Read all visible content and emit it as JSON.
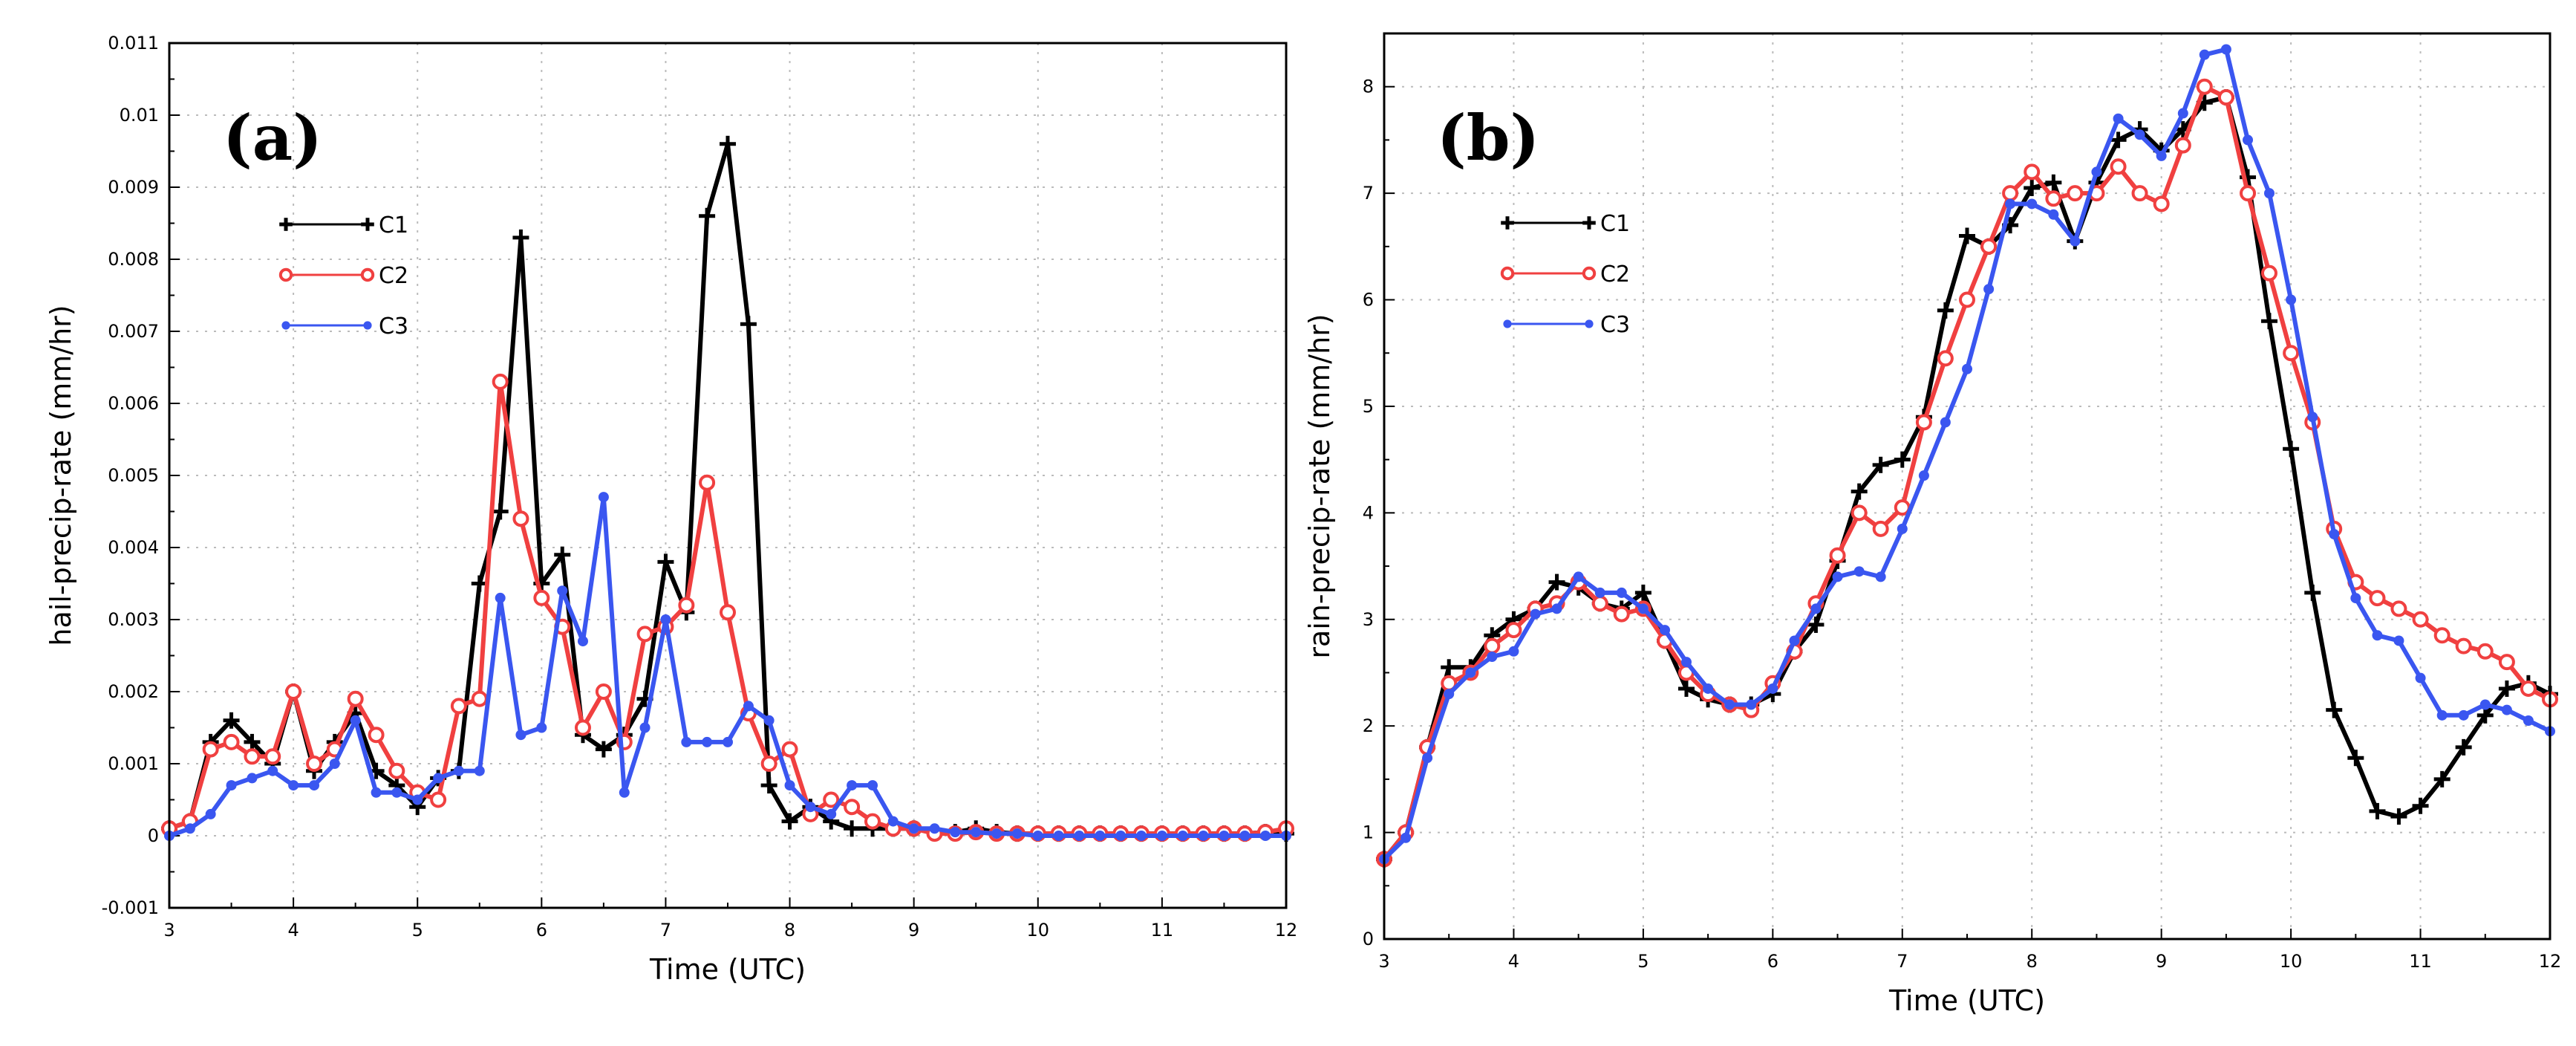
{
  "chart_data": [
    {
      "type": "line",
      "panel_label": "(a)",
      "xlabel": "Time (UTC)",
      "ylabel": "hail-precip-rate (mm/hr)",
      "xlim": [
        3,
        12
      ],
      "ylim": [
        -0.001,
        0.011
      ],
      "xticks": [
        "3",
        "4",
        "5",
        "6",
        "7",
        "8",
        "9",
        "10",
        "11",
        "12"
      ],
      "yticks": [
        "-0.001",
        "0",
        "0.001",
        "0.002",
        "0.003",
        "0.004",
        "0.005",
        "0.006",
        "0.007",
        "0.008",
        "0.009",
        "0.01",
        "0.011"
      ],
      "grid": true,
      "legend_position": "upper-left",
      "series": [
        {
          "name": "C1",
          "marker": "plus",
          "color": "#000000",
          "x": [
            3,
            3.167,
            3.333,
            3.5,
            3.667,
            3.833,
            4,
            4.167,
            4.333,
            4.5,
            4.667,
            4.833,
            5,
            5.167,
            5.333,
            5.5,
            5.667,
            5.833,
            6,
            6.167,
            6.333,
            6.5,
            6.667,
            6.833,
            7,
            7.167,
            7.333,
            7.5,
            7.667,
            7.833,
            8,
            8.167,
            8.333,
            8.5,
            8.667,
            8.833,
            9,
            9.167,
            9.333,
            9.5,
            9.667,
            9.833,
            10,
            10.167,
            10.333,
            10.5,
            10.667,
            10.833,
            11,
            11.167,
            11.333,
            11.5,
            11.667,
            11.833,
            12
          ],
          "y": [
            0.0001,
            0.0002,
            0.0013,
            0.0016,
            0.0013,
            0.001,
            0.002,
            0.0009,
            0.0013,
            0.0017,
            0.0009,
            0.0007,
            0.0004,
            0.0008,
            0.0009,
            0.0035,
            0.0045,
            0.0083,
            0.0035,
            0.0039,
            0.0014,
            0.0012,
            0.0014,
            0.0019,
            0.0038,
            0.0031,
            0.0086,
            0.0096,
            0.0071,
            0.0007,
            0.0002,
            0.0004,
            0.0002,
            0.0001,
            0.0001,
            0.0001,
            0.0001,
            5e-05,
            5e-05,
            0.0001,
            5e-05,
            3e-05,
            3e-05,
            3e-05,
            3e-05,
            3e-05,
            3e-05,
            3e-05,
            3e-05,
            3e-05,
            3e-05,
            3e-05,
            3e-05,
            5e-05,
            3e-05
          ]
        },
        {
          "name": "C2",
          "marker": "open-circle",
          "color": "#f04040",
          "x": [
            3,
            3.167,
            3.333,
            3.5,
            3.667,
            3.833,
            4,
            4.167,
            4.333,
            4.5,
            4.667,
            4.833,
            5,
            5.167,
            5.333,
            5.5,
            5.667,
            5.833,
            6,
            6.167,
            6.333,
            6.5,
            6.667,
            6.833,
            7,
            7.167,
            7.333,
            7.5,
            7.667,
            7.833,
            8,
            8.167,
            8.333,
            8.5,
            8.667,
            8.833,
            9,
            9.167,
            9.333,
            9.5,
            9.667,
            9.833,
            10,
            10.167,
            10.333,
            10.5,
            10.667,
            10.833,
            11,
            11.167,
            11.333,
            11.5,
            11.667,
            11.833,
            12
          ],
          "y": [
            0.0001,
            0.0002,
            0.0012,
            0.0013,
            0.0011,
            0.0011,
            0.002,
            0.001,
            0.0012,
            0.0019,
            0.0014,
            0.0009,
            0.0006,
            0.0005,
            0.0018,
            0.0019,
            0.0063,
            0.0044,
            0.0033,
            0.0029,
            0.0015,
            0.002,
            0.0013,
            0.0028,
            0.0029,
            0.0032,
            0.0049,
            0.0031,
            0.0017,
            0.001,
            0.0012,
            0.0003,
            0.0005,
            0.0004,
            0.0002,
            0.0001,
            0.0001,
            3e-05,
            3e-05,
            5e-05,
            3e-05,
            3e-05,
            3e-05,
            3e-05,
            3e-05,
            3e-05,
            3e-05,
            3e-05,
            3e-05,
            3e-05,
            3e-05,
            3e-05,
            3e-05,
            5e-05,
            0.0001
          ]
        },
        {
          "name": "C3",
          "marker": "filled-circle",
          "color": "#3a56f0",
          "x": [
            3,
            3.167,
            3.333,
            3.5,
            3.667,
            3.833,
            4,
            4.167,
            4.333,
            4.5,
            4.667,
            4.833,
            5,
            5.167,
            5.333,
            5.5,
            5.667,
            5.833,
            6,
            6.167,
            6.333,
            6.5,
            6.667,
            6.833,
            7,
            7.167,
            7.333,
            7.5,
            7.667,
            7.833,
            8,
            8.167,
            8.333,
            8.5,
            8.667,
            8.833,
            9,
            9.167,
            9.333,
            9.5,
            9.667,
            9.833,
            10,
            10.167,
            10.333,
            10.5,
            10.667,
            10.833,
            11,
            11.167,
            11.333,
            11.5,
            11.667,
            11.833,
            12
          ],
          "y": [
            0.0,
            0.0001,
            0.0003,
            0.0007,
            0.0008,
            0.0009,
            0.0007,
            0.0007,
            0.001,
            0.0016,
            0.0006,
            0.0006,
            0.0005,
            0.0008,
            0.0009,
            0.0009,
            0.0033,
            0.0014,
            0.0015,
            0.0034,
            0.0027,
            0.0047,
            0.0006,
            0.0015,
            0.003,
            0.0013,
            0.0013,
            0.0013,
            0.0018,
            0.0016,
            0.0007,
            0.0004,
            0.0003,
            0.0007,
            0.0007,
            0.0002,
            0.0001,
            0.0001,
            5e-05,
            5e-05,
            3e-05,
            3e-05,
            0.0,
            0.0,
            0.0,
            0.0,
            0.0,
            0.0,
            0.0,
            0.0,
            0.0,
            0.0,
            0.0,
            0.0,
            0.0
          ]
        }
      ]
    },
    {
      "type": "line",
      "panel_label": "(b)",
      "xlabel": "Time (UTC)",
      "ylabel": "rain-precip-rate (mm/hr)",
      "xlim": [
        3,
        12
      ],
      "ylim": [
        0,
        8.5
      ],
      "xticks": [
        "3",
        "4",
        "5",
        "6",
        "7",
        "8",
        "9",
        "10",
        "11",
        "12"
      ],
      "yticks": [
        "0",
        "1",
        "2",
        "3",
        "4",
        "5",
        "6",
        "7",
        "8"
      ],
      "grid": true,
      "legend_position": "upper-left",
      "series": [
        {
          "name": "C1",
          "marker": "plus",
          "color": "#000000",
          "x": [
            3,
            3.167,
            3.333,
            3.5,
            3.667,
            3.833,
            4,
            4.167,
            4.333,
            4.5,
            4.667,
            4.833,
            5,
            5.167,
            5.333,
            5.5,
            5.667,
            5.833,
            6,
            6.167,
            6.333,
            6.5,
            6.667,
            6.833,
            7,
            7.167,
            7.333,
            7.5,
            7.667,
            7.833,
            8,
            8.167,
            8.333,
            8.5,
            8.667,
            8.833,
            9,
            9.167,
            9.333,
            9.5,
            9.667,
            9.833,
            10,
            10.167,
            10.333,
            10.5,
            10.667,
            10.833,
            11,
            11.167,
            11.333,
            11.5,
            11.667,
            11.833,
            12
          ],
          "y": [
            0.75,
            1.0,
            1.8,
            2.55,
            2.55,
            2.85,
            3.0,
            3.1,
            3.35,
            3.3,
            3.15,
            3.1,
            3.25,
            2.8,
            2.35,
            2.25,
            2.2,
            2.2,
            2.3,
            2.7,
            2.95,
            3.55,
            4.2,
            4.45,
            4.5,
            4.9,
            5.9,
            6.6,
            6.5,
            6.7,
            7.05,
            7.1,
            6.55,
            7.1,
            7.5,
            7.6,
            7.4,
            7.6,
            7.85,
            7.9,
            7.15,
            5.8,
            4.6,
            3.25,
            2.15,
            1.7,
            1.2,
            1.15,
            1.25,
            1.5,
            1.8,
            2.1,
            2.35,
            2.4,
            2.3
          ]
        },
        {
          "name": "C2",
          "marker": "open-circle",
          "color": "#f04040",
          "x": [
            3,
            3.167,
            3.333,
            3.5,
            3.667,
            3.833,
            4,
            4.167,
            4.333,
            4.5,
            4.667,
            4.833,
            5,
            5.167,
            5.333,
            5.5,
            5.667,
            5.833,
            6,
            6.167,
            6.333,
            6.5,
            6.667,
            6.833,
            7,
            7.167,
            7.333,
            7.5,
            7.667,
            7.833,
            8,
            8.167,
            8.333,
            8.5,
            8.667,
            8.833,
            9,
            9.167,
            9.333,
            9.5,
            9.667,
            9.833,
            10,
            10.167,
            10.333,
            10.5,
            10.667,
            10.833,
            11,
            11.167,
            11.333,
            11.5,
            11.667,
            11.833,
            12
          ],
          "y": [
            0.75,
            1.0,
            1.8,
            2.4,
            2.5,
            2.75,
            2.9,
            3.1,
            3.15,
            3.35,
            3.15,
            3.05,
            3.1,
            2.8,
            2.5,
            2.3,
            2.2,
            2.15,
            2.4,
            2.7,
            3.15,
            3.6,
            4.0,
            3.85,
            4.05,
            4.85,
            5.45,
            6.0,
            6.5,
            7.0,
            7.2,
            6.95,
            7.0,
            7.0,
            7.25,
            7.0,
            6.9,
            7.45,
            8.0,
            7.9,
            7.0,
            6.25,
            5.5,
            4.85,
            3.85,
            3.35,
            3.2,
            3.1,
            3.0,
            2.85,
            2.75,
            2.7,
            2.6,
            2.35,
            2.25
          ]
        },
        {
          "name": "C3",
          "marker": "filled-circle",
          "color": "#3a56f0",
          "x": [
            3,
            3.167,
            3.333,
            3.5,
            3.667,
            3.833,
            4,
            4.167,
            4.333,
            4.5,
            4.667,
            4.833,
            5,
            5.167,
            5.333,
            5.5,
            5.667,
            5.833,
            6,
            6.167,
            6.333,
            6.5,
            6.667,
            6.833,
            7,
            7.167,
            7.333,
            7.5,
            7.667,
            7.833,
            8,
            8.167,
            8.333,
            8.5,
            8.667,
            8.833,
            9,
            9.167,
            9.333,
            9.5,
            9.667,
            9.833,
            10,
            10.167,
            10.333,
            10.5,
            10.667,
            10.833,
            11,
            11.167,
            11.333,
            11.5,
            11.667,
            11.833,
            12
          ],
          "y": [
            0.75,
            0.95,
            1.7,
            2.3,
            2.5,
            2.65,
            2.7,
            3.05,
            3.1,
            3.4,
            3.25,
            3.25,
            3.1,
            2.9,
            2.6,
            2.35,
            2.2,
            2.2,
            2.35,
            2.8,
            3.1,
            3.4,
            3.45,
            3.4,
            3.85,
            4.35,
            4.85,
            5.35,
            6.1,
            6.9,
            6.9,
            6.8,
            6.55,
            7.2,
            7.7,
            7.55,
            7.35,
            7.75,
            8.3,
            8.35,
            7.5,
            7.0,
            6.0,
            4.9,
            3.8,
            3.2,
            2.85,
            2.8,
            2.45,
            2.1,
            2.1,
            2.2,
            2.15,
            2.05,
            1.95
          ]
        }
      ]
    }
  ]
}
